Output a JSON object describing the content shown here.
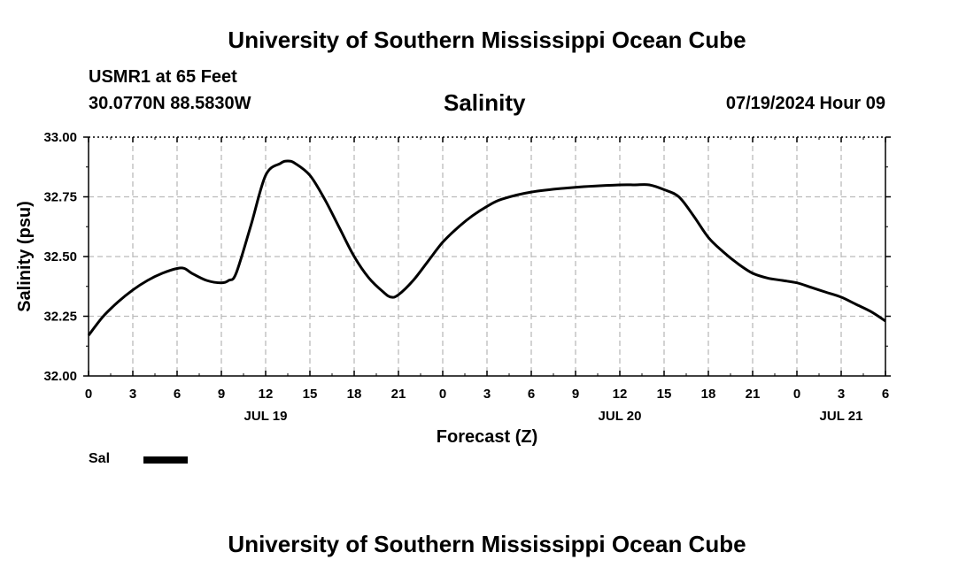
{
  "header": {
    "title_top": "University of Southern Mississippi Ocean Cube",
    "title_bottom": "University of Southern Mississippi Ocean Cube",
    "station": "USMR1 at 65 Feet",
    "coords": "30.0770N  88.5830W",
    "datetime": "07/19/2024 Hour 09"
  },
  "colors": {
    "line": "#000000",
    "grid": "#bbbbbb"
  },
  "chart_data": {
    "type": "line",
    "title": "Salinity",
    "xlabel": "Forecast (Z)",
    "ylabel": "Salinity (psu)",
    "xlim": [
      0,
      54
    ],
    "ylim": [
      32.0,
      33.0
    ],
    "xtick_values": [
      0,
      3,
      6,
      9,
      12,
      15,
      18,
      21,
      24,
      27,
      30,
      33,
      36,
      39,
      42,
      45,
      48,
      51,
      54
    ],
    "xtick_labels": [
      "0",
      "3",
      "6",
      "9",
      "12",
      "15",
      "18",
      "21",
      "0",
      "3",
      "6",
      "9",
      "12",
      "15",
      "18",
      "21",
      "0",
      "3",
      "6"
    ],
    "ytick_values": [
      32.0,
      32.25,
      32.5,
      32.75,
      33.0
    ],
    "ytick_labels": [
      "32.00",
      "32.25",
      "32.50",
      "32.75",
      "33.00"
    ],
    "day_labels": [
      {
        "x": 12,
        "label": "JUL 19"
      },
      {
        "x": 36,
        "label": "JUL 20"
      },
      {
        "x": 51,
        "label": "JUL 21"
      }
    ],
    "series": [
      {
        "name": "Sal",
        "x": [
          0,
          1,
          2,
          3,
          4,
          5,
          6,
          6.5,
          7,
          8,
          9,
          9.5,
          10,
          11,
          12,
          13,
          13.5,
          14,
          15,
          16,
          17,
          18,
          19,
          20,
          20.5,
          21,
          22,
          23,
          24,
          25,
          26,
          27,
          28,
          30,
          33,
          36,
          37,
          38,
          39,
          40,
          41,
          42,
          43,
          44,
          45,
          46,
          47,
          48,
          49,
          50,
          51,
          52,
          53,
          54
        ],
        "values": [
          32.17,
          32.25,
          32.31,
          32.36,
          32.4,
          32.43,
          32.45,
          32.45,
          32.43,
          32.4,
          32.39,
          32.4,
          32.43,
          32.63,
          32.84,
          32.89,
          32.9,
          32.89,
          32.84,
          32.74,
          32.62,
          32.5,
          32.41,
          32.35,
          32.33,
          32.34,
          32.4,
          32.48,
          32.56,
          32.62,
          32.67,
          32.71,
          32.74,
          32.77,
          32.79,
          32.8,
          32.8,
          32.8,
          32.78,
          32.75,
          32.67,
          32.58,
          32.52,
          32.47,
          32.43,
          32.41,
          32.4,
          32.39,
          32.37,
          32.35,
          32.33,
          32.3,
          32.27,
          32.23
        ]
      }
    ],
    "legend": [
      {
        "label": "Sal"
      }
    ]
  }
}
